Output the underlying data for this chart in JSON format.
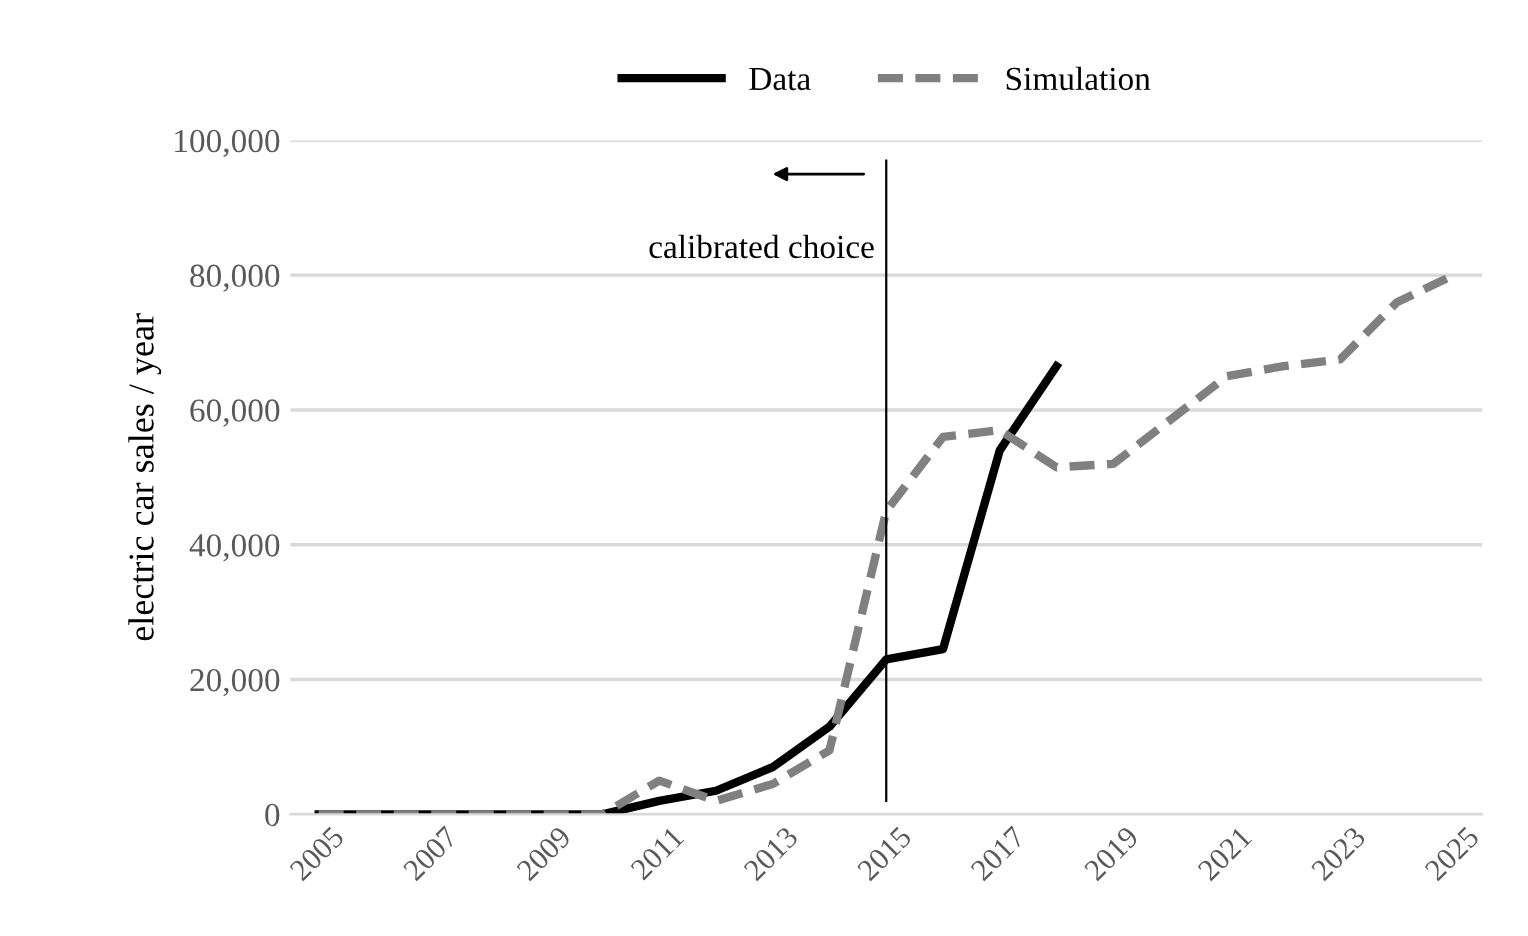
{
  "chart_data": {
    "type": "line",
    "ylabel": "electric car sales / year",
    "x": [
      2005,
      2006,
      2007,
      2008,
      2009,
      2010,
      2011,
      2012,
      2013,
      2014,
      2015,
      2016,
      2017,
      2018,
      2019,
      2020,
      2021,
      2022,
      2023,
      2024,
      2025
    ],
    "series": [
      {
        "name": "Data",
        "color": "#000000",
        "line_style": "solid",
        "values": [
          0,
          0,
          0,
          0,
          0,
          0,
          2000,
          3500,
          7000,
          13000,
          23000,
          24500,
          54000,
          66500,
          null,
          null,
          null,
          null,
          null,
          null,
          null
        ]
      },
      {
        "name": "Simulation",
        "color": "#808080",
        "line_style": "dashed",
        "values": [
          0,
          0,
          0,
          0,
          0,
          0,
          5000,
          2000,
          4500,
          9500,
          45000,
          56000,
          57000,
          51500,
          52000,
          58500,
          65000,
          66500,
          67500,
          76000,
          80000
        ]
      }
    ],
    "xlim": [
      2004.5,
      2025.5
    ],
    "xticks": [
      2005,
      2007,
      2009,
      2011,
      2013,
      2015,
      2017,
      2019,
      2021,
      2023,
      2025
    ],
    "ylim": [
      0,
      100000
    ],
    "yticks": [
      {
        "value": 0,
        "label": "0"
      },
      {
        "value": 20000,
        "label": "20,000"
      },
      {
        "value": 40000,
        "label": "40,000"
      },
      {
        "value": 60000,
        "label": "60,000"
      },
      {
        "value": 80000,
        "label": "80,000"
      },
      {
        "value": 100000,
        "label": "100,000"
      }
    ],
    "grid": "y",
    "legend": "top",
    "ref_lines": [
      {
        "axis": "x",
        "value": 2015,
        "label": "calibrated choice",
        "color": "#000000"
      }
    ]
  }
}
